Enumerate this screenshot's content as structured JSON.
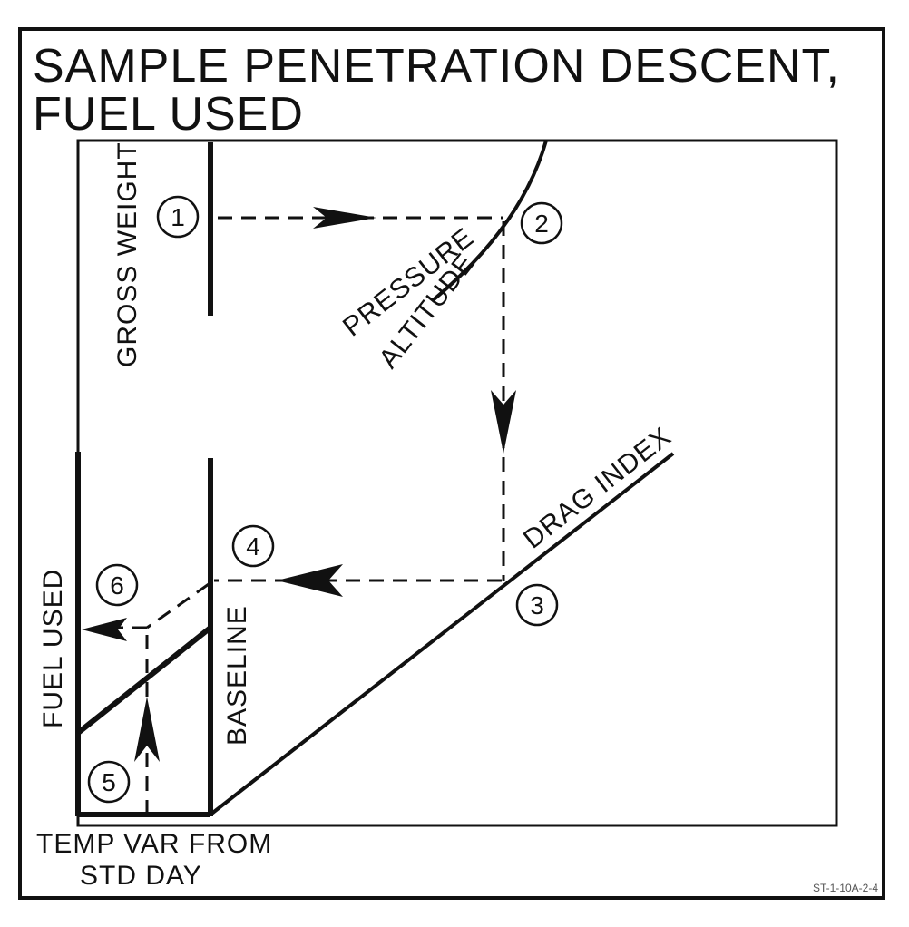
{
  "title": {
    "line1": "SAMPLE PENETRATION DESCENT,",
    "line2": "FUEL USED"
  },
  "labels": {
    "gross_weight": "GROSS WEIGHT",
    "pressure": "PRESSURE",
    "altitude": "ALTITUDE",
    "drag_index": "DRAG INDEX",
    "baseline": "BASELINE",
    "fuel_used": "FUEL USED",
    "temp_var_line1": "TEMP VAR FROM",
    "temp_var_line2": "STD DAY",
    "figure_code": "ST-1-10A-2-4"
  },
  "steps": [
    "1",
    "2",
    "3",
    "4",
    "5",
    "6"
  ],
  "colors": {
    "ink": "#111111",
    "background": "#ffffff"
  }
}
